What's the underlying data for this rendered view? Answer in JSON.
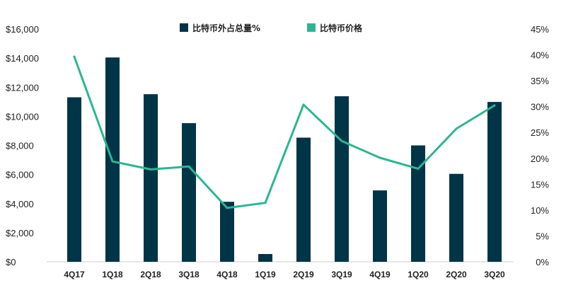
{
  "chart_data": {
    "type": "bar",
    "categories": [
      "4Q17",
      "1Q18",
      "2Q18",
      "3Q18",
      "4Q18",
      "1Q19",
      "2Q19",
      "3Q19",
      "4Q19",
      "1Q20",
      "2Q20",
      "3Q20"
    ],
    "series": [
      {
        "name": "比特币外占总量%",
        "type": "bar",
        "axis": "right",
        "unit": "%",
        "color": "#003447",
        "values": [
          31.8,
          39.5,
          32.4,
          26.8,
          11.6,
          1.5,
          24.0,
          32.0,
          13.8,
          22.5,
          17.0,
          30.9
        ]
      },
      {
        "name": "比特币价格",
        "type": "line",
        "axis": "left",
        "unit": "$",
        "color": "#2bb693",
        "values": [
          14100,
          6900,
          6350,
          6550,
          3700,
          4050,
          10800,
          8300,
          7150,
          6400,
          9150,
          10750
        ]
      }
    ],
    "y_left": {
      "ylim": [
        0,
        16000
      ],
      "ticks": [
        "$0",
        "$2,000",
        "$4,000",
        "$6,000",
        "$8,000",
        "$10,000",
        "$12,000",
        "$14,000",
        "$16,000"
      ]
    },
    "y_right": {
      "ylim": [
        0,
        45
      ],
      "ticks": [
        "0%",
        "5%",
        "10%",
        "15%",
        "20%",
        "25%",
        "30%",
        "35%",
        "40%",
        "45%"
      ]
    },
    "legend_position": "top-center",
    "grid": false
  }
}
